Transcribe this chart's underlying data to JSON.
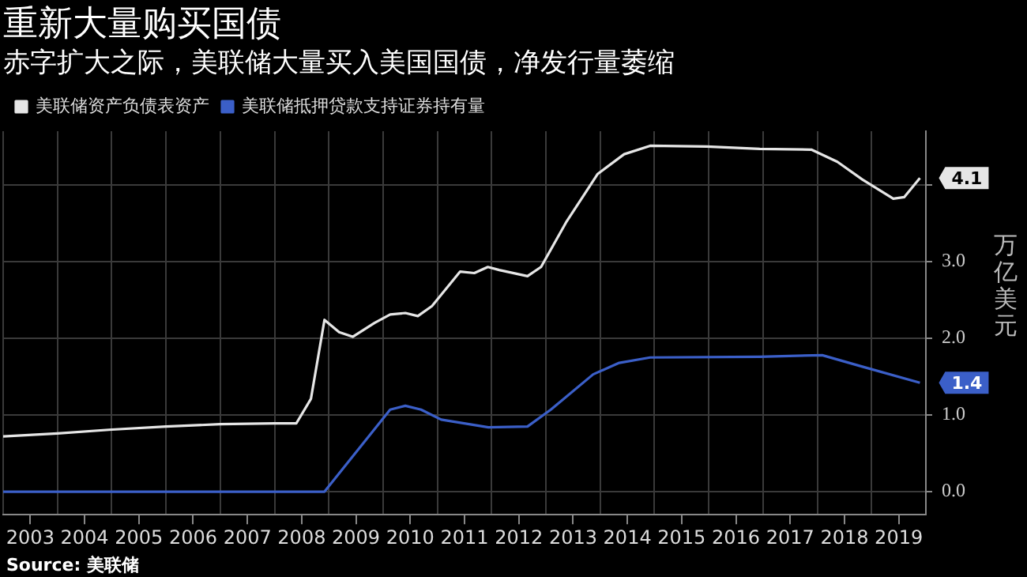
{
  "chart_data": {
    "type": "line",
    "title": "重新大量购买国债",
    "subtitle": "赤字扩大之际，美联储大量买入美国国债，净发行量萎缩",
    "ylabel": "万亿美元",
    "series": [
      {
        "name": "美联储资产负债表资产",
        "color": "#e6e6e6",
        "x": [
          2003.0,
          2004.0,
          2005.0,
          2006.0,
          2007.0,
          2008.0,
          2008.4,
          2008.67,
          2008.92,
          2009.19,
          2009.44,
          2009.84,
          2010.13,
          2010.41,
          2010.64,
          2010.9,
          2011.42,
          2011.68,
          2011.93,
          2012.14,
          2012.66,
          2012.91,
          2013.37,
          2013.95,
          2014.44,
          2014.92,
          2015.96,
          2016.94,
          2017.89,
          2018.37,
          2018.83,
          2019.4,
          2019.6,
          2019.89
        ],
        "values": [
          0.72,
          0.76,
          0.81,
          0.85,
          0.88,
          0.89,
          0.89,
          1.21,
          2.24,
          2.08,
          2.02,
          2.2,
          2.31,
          2.33,
          2.29,
          2.42,
          2.87,
          2.85,
          2.93,
          2.89,
          2.81,
          2.93,
          3.51,
          4.14,
          4.4,
          4.51,
          4.5,
          4.47,
          4.46,
          4.3,
          4.07,
          3.82,
          3.84,
          4.09
        ]
      },
      {
        "name": "美联储抵押贷款支持证券持有量",
        "color": "#3b5fc8",
        "x": [
          2003.0,
          2008.92,
          2010.13,
          2010.41,
          2010.7,
          2011.07,
          2011.94,
          2012.66,
          2013.09,
          2013.87,
          2014.35,
          2014.92,
          2016.94,
          2018.09,
          2018.83,
          2019.89
        ],
        "values": [
          0,
          0,
          1.07,
          1.12,
          1.07,
          0.94,
          0.84,
          0.85,
          1.07,
          1.53,
          1.68,
          1.75,
          1.76,
          1.78,
          1.63,
          1.42
        ]
      }
    ],
    "xlim": [
      2003,
      2020
    ],
    "xticks": [
      {
        "value": 2003,
        "label": null
      },
      {
        "value": 2003.5,
        "label": "2003"
      },
      {
        "value": 2004,
        "label": null
      },
      {
        "value": 2004.5,
        "label": "2004"
      },
      {
        "value": 2005,
        "label": null
      },
      {
        "value": 2005.5,
        "label": "2005"
      },
      {
        "value": 2006,
        "label": null
      },
      {
        "value": 2006.5,
        "label": "2006"
      },
      {
        "value": 2007,
        "label": null
      },
      {
        "value": 2007.5,
        "label": "2007"
      },
      {
        "value": 2008,
        "label": null
      },
      {
        "value": 2008.5,
        "label": "2008"
      },
      {
        "value": 2009,
        "label": null
      },
      {
        "value": 2009.5,
        "label": "2009"
      },
      {
        "value": 2010,
        "label": null
      },
      {
        "value": 2010.5,
        "label": "2010"
      },
      {
        "value": 2011,
        "label": null
      },
      {
        "value": 2011.5,
        "label": "2011"
      },
      {
        "value": 2012,
        "label": null
      },
      {
        "value": 2012.5,
        "label": "2012"
      },
      {
        "value": 2013,
        "label": null
      },
      {
        "value": 2013.5,
        "label": "2013"
      },
      {
        "value": 2014,
        "label": null
      },
      {
        "value": 2014.5,
        "label": "2014"
      },
      {
        "value": 2015,
        "label": null
      },
      {
        "value": 2015.5,
        "label": "2015"
      },
      {
        "value": 2016,
        "label": null
      },
      {
        "value": 2016.5,
        "label": "2016"
      },
      {
        "value": 2017,
        "label": null
      },
      {
        "value": 2017.5,
        "label": "2017"
      },
      {
        "value": 2018,
        "label": null
      },
      {
        "value": 2018.5,
        "label": "2018"
      },
      {
        "value": 2019,
        "label": null
      },
      {
        "value": 2019.5,
        "label": "2019"
      },
      {
        "value": 2020,
        "label": null
      }
    ],
    "ylim": [
      -0.3,
      4.7
    ],
    "yticks": [
      {
        "value": 0,
        "label": "0.0"
      },
      {
        "value": 1,
        "label": "1.0"
      },
      {
        "value": 2,
        "label": "2.0"
      },
      {
        "value": 3,
        "label": "3.0"
      },
      {
        "value": 4,
        "label": null
      }
    ],
    "grid": true,
    "legend": "top left",
    "marker": "none",
    "line_style": "solid",
    "annotations": [
      {
        "text": "4.1",
        "x": 2019.89,
        "y": 4.09
      },
      {
        "text": "1.4",
        "x": 2019.89,
        "y": 1.42
      },
      "Source: 美联储"
    ]
  }
}
